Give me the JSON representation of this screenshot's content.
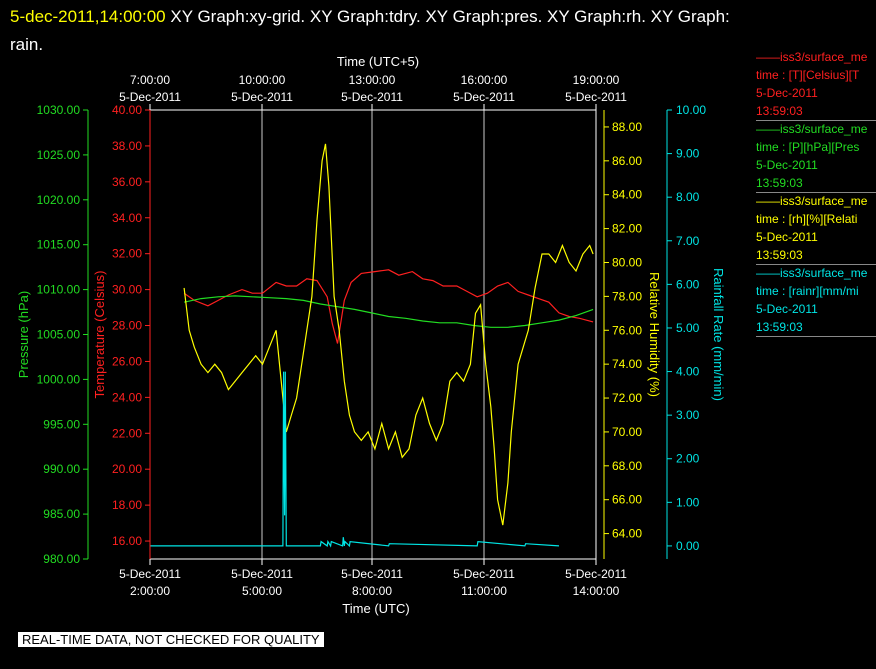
{
  "header": {
    "timestamp": "5-dec-2011,14:00:00",
    "graphs_line1": "  XY Graph:xy-grid.  XY Graph:tdry.  XY Graph:pres.  XY Graph:rh.  XY Graph:",
    "graphs_line2": "rain."
  },
  "legend": [
    {
      "series": "——iss3/surface_me",
      "units": "time : [T][Celsius][T",
      "date": "5-Dec-2011",
      "time": "13:59:03",
      "color": "#ff2020"
    },
    {
      "series": "——iss3/surface_me",
      "units": "time : [P][hPa][Pres",
      "date": "5-Dec-2011",
      "time": "13:59:03",
      "color": "#22dd22"
    },
    {
      "series": "——iss3/surface_me",
      "units": "time : [rh][%][Relati",
      "date": "5-Dec-2011",
      "time": "13:59:03",
      "color": "#ffff00"
    },
    {
      "series": "——iss3/surface_me",
      "units": "time : [rainr][mm/mi",
      "date": "5-Dec-2011",
      "time": "13:59:03",
      "color": "#00e5e5"
    }
  ],
  "disclaimer": "REAL-TIME DATA, NOT CHECKED FOR QUALITY",
  "chart_data": {
    "type": "line",
    "top_axis": {
      "label": "Time (UTC+5)",
      "ticks": [
        {
          "x": 2,
          "time": "7:00:00",
          "date": "5-Dec-2011"
        },
        {
          "x": 5,
          "time": "10:00:00",
          "date": "5-Dec-2011"
        },
        {
          "x": 8,
          "time": "13:00:00",
          "date": "5-Dec-2011"
        },
        {
          "x": 11,
          "time": "16:00:00",
          "date": "5-Dec-2011"
        },
        {
          "x": 14,
          "time": "19:00:00",
          "date": "5-Dec-2011"
        }
      ]
    },
    "bottom_axis": {
      "label": "Time (UTC)",
      "xlim": [
        1,
        13
      ],
      "ticks": [
        {
          "x": 2,
          "date": "5-Dec-2011",
          "time": "2:00:00"
        },
        {
          "x": 5,
          "date": "5-Dec-2011",
          "time": "5:00:00"
        },
        {
          "x": 8,
          "date": "5-Dec-2011",
          "time": "8:00:00"
        },
        {
          "x": 11,
          "date": "5-Dec-2011",
          "time": "11:00:00"
        },
        {
          "x": 14,
          "date": "5-Dec-2011",
          "time": "14:00:00"
        }
      ]
    },
    "y_axes": [
      {
        "id": "pres",
        "label": "Pressure (hPa)",
        "color": "#22dd22",
        "ylim": [
          980,
          1030
        ],
        "tick_start": 980,
        "tick_step": 5,
        "tick_count": 11,
        "decimals": 2
      },
      {
        "id": "tdry",
        "label": "Temperature (Celsius)",
        "color": "#ff2020",
        "ylim": [
          15,
          40
        ],
        "tick_start": 16,
        "tick_step": 2,
        "tick_count": 13,
        "decimals": 2
      },
      {
        "id": "rh",
        "label": "Relative Humidity (%)",
        "color": "#ffff00",
        "ylim": [
          62.5,
          89
        ],
        "tick_start": 64,
        "tick_step": 2,
        "tick_count": 13,
        "decimals": 2
      },
      {
        "id": "rain",
        "label": "Rainfall Rate (mm/min)",
        "color": "#00e5e5",
        "ylim": [
          -0.3,
          10
        ],
        "tick_start": 0,
        "tick_step": 1,
        "tick_count": 11,
        "decimals": 2
      }
    ],
    "grid": "vertical",
    "series": [
      {
        "axis": "tdry",
        "color": "#ff2020",
        "x": [
          2.0,
          2.3,
          2.7,
          3.0,
          3.3,
          3.7,
          4.0,
          4.3,
          4.7,
          5.0,
          5.3,
          5.6,
          5.9,
          6.2,
          6.35,
          6.5,
          6.7,
          6.9,
          7.2,
          7.6,
          8.0,
          8.3,
          8.7,
          9.0,
          9.3,
          9.6,
          10.0,
          10.3,
          10.6,
          10.9,
          11.2,
          11.5,
          11.8,
          12.1,
          12.4,
          12.7,
          13.0,
          13.3,
          13.6,
          14.0
        ],
        "y": [
          29.8,
          29.4,
          29.1,
          29.4,
          29.7,
          30.0,
          29.8,
          29.8,
          30.4,
          30.2,
          30.2,
          30.6,
          30.5,
          29.6,
          28.1,
          27.0,
          29.4,
          30.4,
          30.9,
          31.0,
          31.1,
          30.8,
          31.0,
          30.6,
          30.5,
          30.2,
          30.2,
          29.9,
          29.6,
          29.8,
          30.2,
          30.4,
          29.9,
          29.7,
          29.5,
          29.3,
          28.7,
          28.5,
          28.4,
          28.2
        ]
      },
      {
        "axis": "pres",
        "color": "#22dd22",
        "x": [
          2.0,
          2.5,
          3.0,
          3.5,
          4.0,
          4.5,
          5.0,
          5.5,
          6.0,
          6.5,
          7.0,
          7.5,
          8.0,
          8.5,
          9.0,
          9.5,
          10.0,
          10.5,
          11.0,
          11.5,
          12.0,
          12.5,
          13.0,
          13.5,
          14.0
        ],
        "y": [
          1008.6,
          1009.0,
          1009.2,
          1009.3,
          1009.2,
          1009.1,
          1009.0,
          1008.8,
          1008.4,
          1008.1,
          1007.8,
          1007.4,
          1007.0,
          1006.8,
          1006.5,
          1006.3,
          1006.3,
          1006.0,
          1005.8,
          1005.8,
          1006.0,
          1006.3,
          1006.6,
          1007.1,
          1007.8
        ]
      },
      {
        "axis": "rh",
        "color": "#ffff00",
        "x": [
          2.0,
          2.15,
          2.3,
          2.5,
          2.7,
          2.9,
          3.1,
          3.3,
          3.5,
          3.7,
          3.9,
          4.1,
          4.3,
          4.5,
          4.7,
          4.85,
          5.0,
          5.15,
          5.3,
          5.45,
          5.6,
          5.75,
          5.9,
          6.05,
          6.15,
          6.25,
          6.4,
          6.55,
          6.7,
          6.85,
          7.0,
          7.2,
          7.4,
          7.6,
          7.8,
          8.0,
          8.2,
          8.4,
          8.6,
          8.8,
          9.0,
          9.2,
          9.4,
          9.6,
          9.8,
          10.0,
          10.2,
          10.4,
          10.55,
          10.7,
          10.85,
          11.0,
          11.1,
          11.2,
          11.35,
          11.5,
          11.6,
          11.7,
          11.8,
          11.95,
          12.1,
          12.3,
          12.5,
          12.7,
          12.9,
          13.1,
          13.3,
          13.5,
          13.7,
          13.9,
          14.0
        ],
        "y": [
          78.5,
          76.0,
          75.0,
          74.0,
          73.5,
          74.0,
          73.5,
          72.5,
          73.0,
          73.5,
          74.0,
          74.5,
          74.0,
          75.0,
          76.0,
          73.0,
          70.0,
          71.0,
          72.0,
          74.0,
          76.0,
          78.0,
          82.5,
          86.0,
          87.0,
          84.5,
          78.0,
          76.0,
          73.0,
          71.0,
          70.0,
          69.5,
          70.0,
          69.0,
          70.5,
          69.0,
          70.0,
          68.5,
          69.0,
          71.0,
          72.0,
          70.5,
          69.5,
          70.5,
          73.0,
          73.5,
          73.0,
          74.0,
          77.0,
          77.5,
          74.0,
          71.5,
          69.0,
          66.0,
          64.5,
          67.0,
          70.0,
          72.0,
          74.0,
          75.0,
          76.0,
          78.5,
          80.5,
          80.5,
          80.0,
          81.0,
          80.0,
          79.5,
          80.5,
          81.0,
          80.5
        ]
      },
      {
        "axis": "rain",
        "color": "#00e5e5",
        "x": [
          1.0,
          4.9,
          4.92,
          4.95,
          4.97,
          5.0,
          5.02,
          6.0,
          6.02,
          6.2,
          6.22,
          6.3,
          6.32,
          6.65,
          6.67,
          6.7,
          6.72,
          6.85,
          6.87,
          8.0,
          8.02,
          10.6,
          10.62,
          12.0,
          12.02,
          13.0
        ],
        "y": [
          0,
          0,
          4.0,
          0.7,
          4.0,
          0,
          0,
          0,
          0.1,
          0,
          0.1,
          0,
          0.1,
          0,
          0.2,
          0,
          0.1,
          0,
          0.1,
          0,
          0.05,
          0,
          0.1,
          0,
          0.05,
          0
        ]
      }
    ]
  }
}
